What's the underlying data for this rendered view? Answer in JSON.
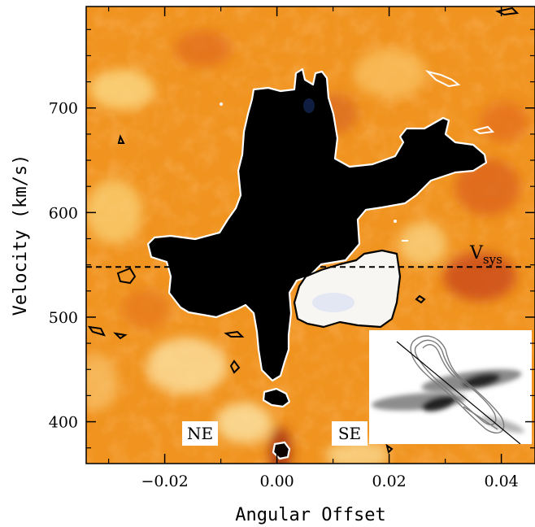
{
  "chart_data": {
    "type": "heatmap",
    "title": "",
    "xlabel": "Angular Offset",
    "ylabel": "Velocity (km/s)",
    "xlim": [
      -0.034,
      0.046
    ],
    "ylim": [
      360,
      797
    ],
    "x_ticks": [
      -0.02,
      0.0,
      0.02,
      0.04
    ],
    "x_tick_labels": [
      "−0.02",
      "0.00",
      "0.02",
      "0.04"
    ],
    "y_ticks": [
      400,
      500,
      600,
      700
    ],
    "y_tick_labels": [
      "400",
      "500",
      "600",
      "700"
    ],
    "systemic_velocity": 548,
    "vsys_label": "V",
    "vsys_subscript": "sys",
    "region_labels": [
      {
        "text": "NE",
        "x": -0.0175,
        "y": 385
      },
      {
        "text": "SE",
        "x": 0.0137,
        "y": 385
      }
    ],
    "features": [
      {
        "kind": "absorption",
        "color": "#000000",
        "outline": "#ffffff",
        "x_range": [
          -0.02,
          0.035
        ],
        "y_range": [
          415,
          735
        ]
      },
      {
        "kind": "emission",
        "color": "#ffffff",
        "outline": "#000000",
        "x_range": [
          0.003,
          0.021
        ],
        "y_range": [
          490,
          565
        ]
      }
    ],
    "colormap": [
      "#000000",
      "#b83a12",
      "#e8761e",
      "#f7a844",
      "#fbd87a",
      "#ffffff"
    ],
    "grid": false,
    "inset": {
      "present": true,
      "location": "bottom-right"
    }
  }
}
